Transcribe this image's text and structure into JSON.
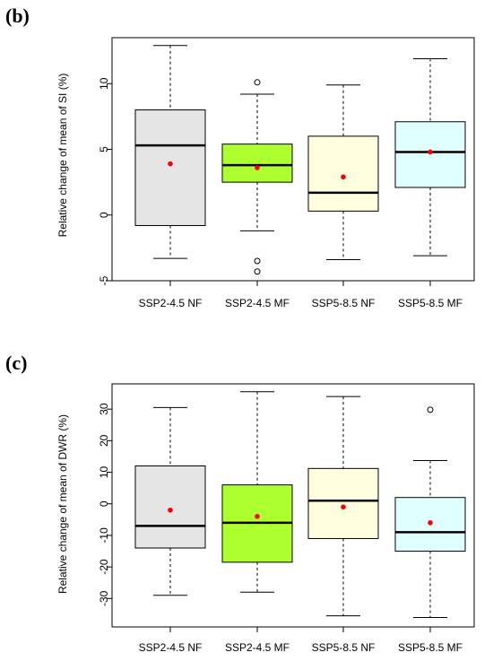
{
  "chart_data": [
    {
      "type": "boxplot",
      "panel_label": "(b)",
      "ylabel": "Relative change of mean of SI (%)",
      "xlabel": "",
      "ylim": [
        -5,
        13.5
      ],
      "yticks": [
        "-5",
        "0",
        "5",
        "10"
      ],
      "categories": [
        "SSP2-4.5 NF",
        "SSP2-4.5 MF",
        "SSP5-8.5 NF",
        "SSP5-8.5 MF"
      ],
      "colors": [
        "#e5e5e5",
        "#adff2f",
        "#ffffe0",
        "#e0ffff"
      ],
      "mean_color": "#ff0000",
      "boxes": [
        {
          "min": -3.3,
          "q1": -0.8,
          "median": 5.3,
          "q3": 8.0,
          "max": 12.9,
          "mean": 3.9,
          "outliers": []
        },
        {
          "min": -1.2,
          "q1": 2.5,
          "median": 3.8,
          "q3": 5.4,
          "max": 9.2,
          "mean": 3.6,
          "outliers": [
            10.1,
            -3.5,
            -4.3
          ]
        },
        {
          "min": -3.4,
          "q1": 0.3,
          "median": 1.7,
          "q3": 6.0,
          "max": 9.9,
          "mean": 2.9,
          "outliers": []
        },
        {
          "min": -3.1,
          "q1": 2.1,
          "median": 4.8,
          "q3": 7.1,
          "max": 11.9,
          "mean": 4.8,
          "outliers": []
        }
      ]
    },
    {
      "type": "boxplot",
      "panel_label": "(c)",
      "ylabel": "Relative change of mean of DWR (%)",
      "xlabel": "",
      "ylim": [
        -39,
        38
      ],
      "yticks": [
        "-30",
        "-20",
        "-10",
        "0",
        "10",
        "20",
        "30"
      ],
      "categories": [
        "SSP2-4.5 NF",
        "SSP2-4.5 MF",
        "SSP5-8.5 NF",
        "SSP5-8.5 MF"
      ],
      "colors": [
        "#e5e5e5",
        "#adff2f",
        "#ffffe0",
        "#e0ffff"
      ],
      "mean_color": "#ff0000",
      "boxes": [
        {
          "min": -29,
          "q1": -14,
          "median": -7,
          "q3": 12,
          "max": 30.5,
          "mean": -2,
          "outliers": []
        },
        {
          "min": -28,
          "q1": -18.5,
          "median": -6,
          "q3": 6,
          "max": 35.5,
          "mean": -4,
          "outliers": []
        },
        {
          "min": -35.5,
          "q1": -11,
          "median": 1,
          "q3": 11.2,
          "max": 34,
          "mean": -1,
          "outliers": []
        },
        {
          "min": -36,
          "q1": -15,
          "median": -9,
          "q3": 2,
          "max": 13.7,
          "mean": -6,
          "outliers": [
            29.8
          ]
        }
      ]
    }
  ]
}
